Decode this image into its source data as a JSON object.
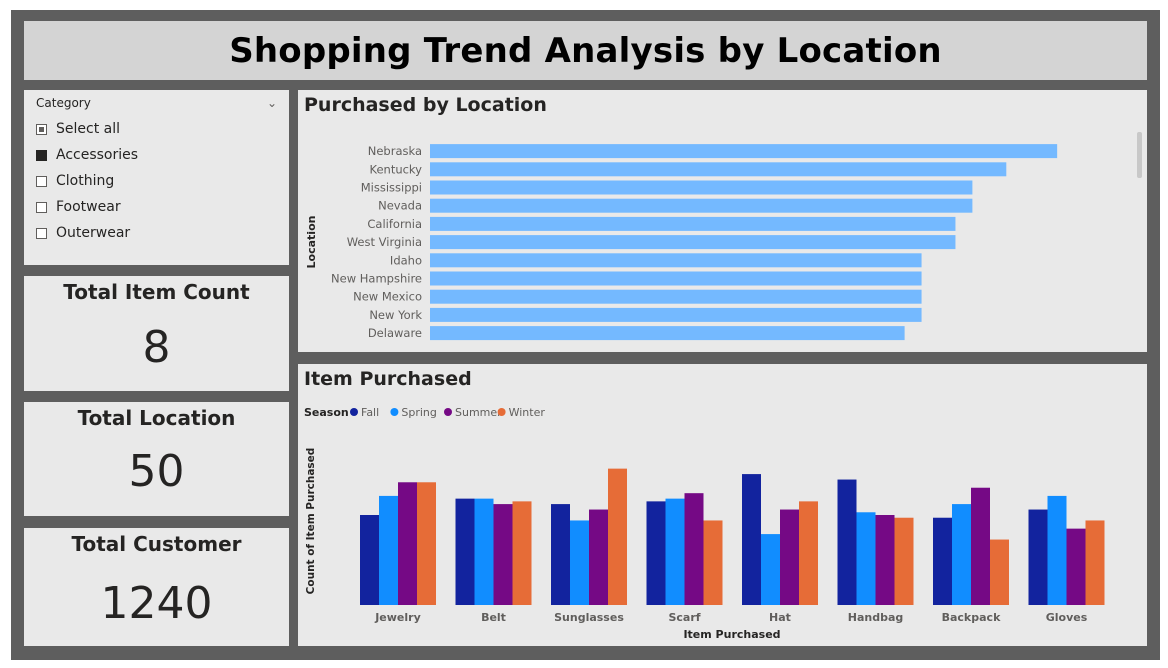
{
  "title": "Shopping Trend Analysis by Location",
  "slicer": {
    "header": "Category",
    "items": [
      {
        "label": "Select all",
        "state": "partial"
      },
      {
        "label": "Accessories",
        "state": "checked"
      },
      {
        "label": "Clothing",
        "state": "unchecked"
      },
      {
        "label": "Footwear",
        "state": "unchecked"
      },
      {
        "label": "Outerwear",
        "state": "unchecked"
      }
    ],
    "chevron_icon": "chevron-down-icon"
  },
  "kpis": [
    {
      "label": "Total Item Count",
      "value": "8"
    },
    {
      "label": "Total Location",
      "value": "50"
    },
    {
      "label": "Total Customer",
      "value": "1240"
    }
  ],
  "chart_data": [
    {
      "type": "bar",
      "orientation": "horizontal",
      "title": "Purchased by Location",
      "ylabel": "Location",
      "xlabel": "",
      "categories": [
        "Nebraska",
        "Kentucky",
        "Mississippi",
        "Nevada",
        "California",
        "West Virginia",
        "Idaho",
        "New Hampshire",
        "New Mexico",
        "New York",
        "Delaware"
      ],
      "values": [
        37,
        34,
        32,
        32,
        31,
        31,
        29,
        29,
        29,
        29,
        28
      ],
      "xlim": [
        0,
        40
      ],
      "color": "#74b9ff",
      "grid": false
    },
    {
      "type": "bar",
      "title": "Item Purchased",
      "xlabel": "Item Purchased",
      "ylabel": "Count of Item Purchased",
      "legend_title": "Season",
      "legend_placement": "top-left",
      "categories": [
        "Jewelry",
        "Belt",
        "Sunglasses",
        "Scarf",
        "Hat",
        "Handbag",
        "Backpack",
        "Gloves"
      ],
      "series": [
        {
          "name": "Fall",
          "color": "#12239e",
          "values": [
            33,
            39,
            37,
            38,
            48,
            46,
            32,
            35
          ]
        },
        {
          "name": "Spring",
          "color": "#118dff",
          "values": [
            40,
            39,
            31,
            39,
            26,
            34,
            37,
            40
          ]
        },
        {
          "name": "Summer",
          "color": "#750985",
          "values": [
            45,
            37,
            35,
            41,
            35,
            33,
            43,
            28
          ]
        },
        {
          "name": "Winter",
          "color": "#e66c37",
          "values": [
            45,
            38,
            50,
            31,
            38,
            32,
            24,
            31
          ]
        }
      ],
      "ylim": [
        0,
        55
      ],
      "grid": false
    }
  ]
}
